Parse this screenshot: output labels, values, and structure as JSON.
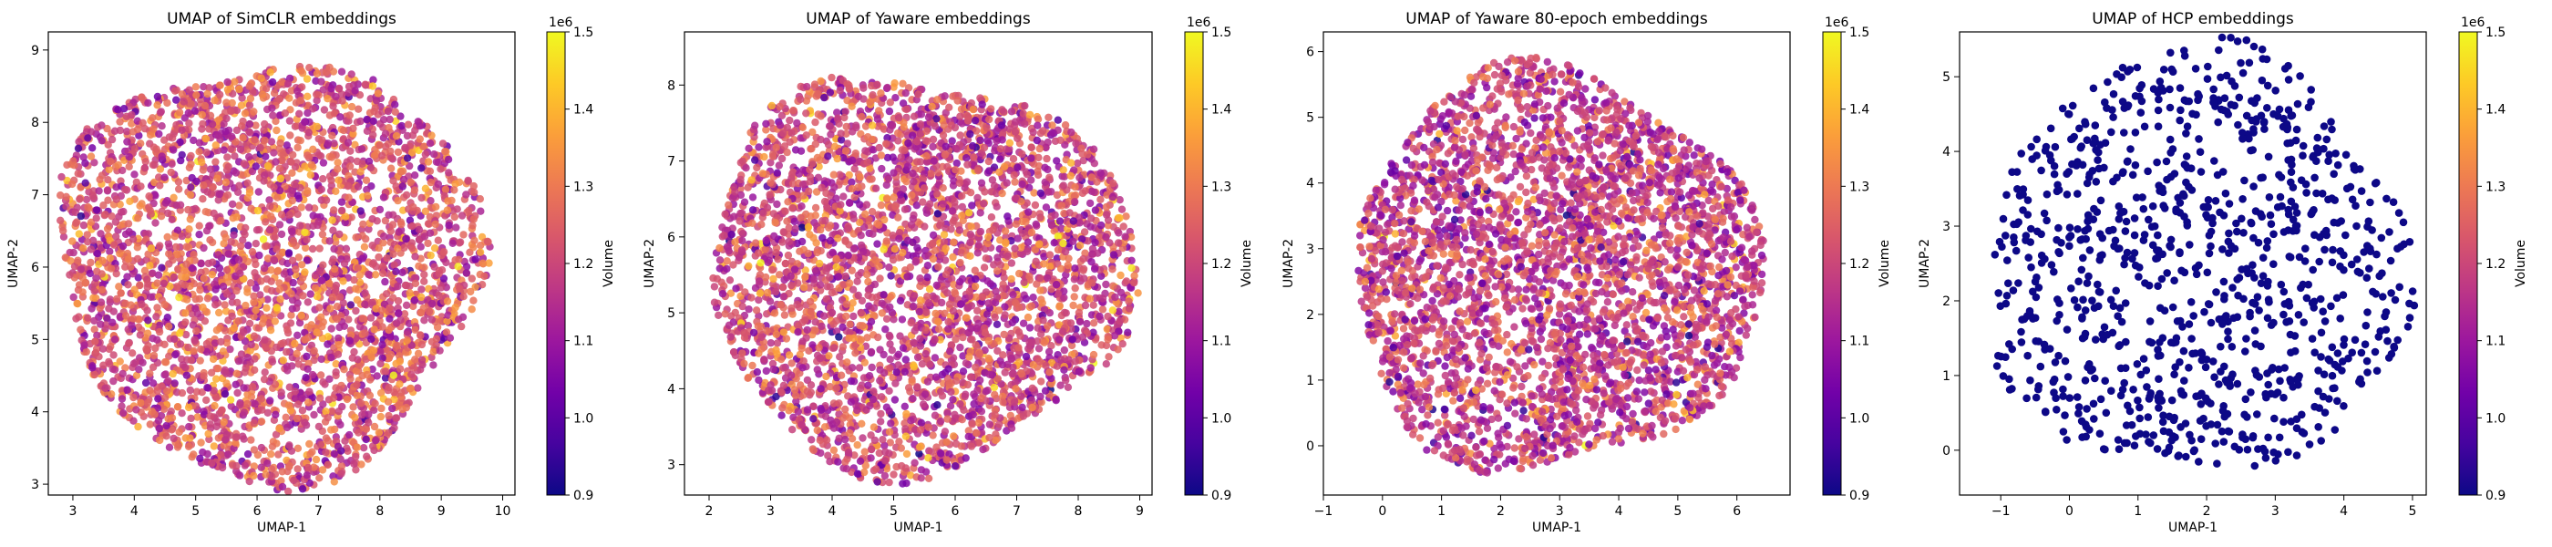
{
  "chart_data": [
    {
      "type": "scatter",
      "title": "UMAP of SimCLR embeddings",
      "xlabel": "UMAP-1",
      "ylabel": "UMAP-2",
      "xlim": [
        2.6,
        10.2
      ],
      "ylim": [
        2.85,
        9.25
      ],
      "xticks": [
        "3",
        "4",
        "5",
        "6",
        "7",
        "8",
        "9",
        "10"
      ],
      "yticks": [
        "3",
        "4",
        "5",
        "6",
        "7",
        "8",
        "9"
      ],
      "colorbar": {
        "label": "Volume",
        "offset_text": "1e6",
        "range": [
          0.9,
          1.5
        ],
        "ticks": [
          "0.9",
          "1.0",
          "1.1",
          "1.2",
          "1.3",
          "1.4",
          "1.5"
        ]
      },
      "cloud": {
        "center": [
          6.2,
          6.0
        ],
        "radius": [
          3.45,
          2.9
        ],
        "count": 3500,
        "volume_range": [
          0.9,
          1.5
        ],
        "volume_mean": 1.22
      }
    },
    {
      "type": "scatter",
      "title": "UMAP of Yaware embeddings",
      "xlabel": "UMAP-1",
      "ylabel": "UMAP-2",
      "xlim": [
        1.6,
        9.2
      ],
      "ylim": [
        2.6,
        8.7
      ],
      "xticks": [
        "2",
        "3",
        "4",
        "5",
        "6",
        "7",
        "8",
        "9"
      ],
      "yticks": [
        "3",
        "4",
        "5",
        "6",
        "7",
        "8"
      ],
      "colorbar": {
        "label": "Volume",
        "offset_text": "1e6",
        "range": [
          0.9,
          1.5
        ],
        "ticks": [
          "0.9",
          "1.0",
          "1.1",
          "1.2",
          "1.3",
          "1.4",
          "1.5"
        ]
      },
      "cloud": {
        "center": [
          5.4,
          5.55
        ],
        "radius": [
          3.45,
          2.6
        ],
        "count": 3500,
        "volume_range": [
          0.9,
          1.5
        ],
        "volume_mean": 1.2
      }
    },
    {
      "type": "scatter",
      "title": "UMAP of Yaware 80-epoch embeddings",
      "xlabel": "UMAP-1",
      "ylabel": "UMAP-2",
      "xlim": [
        -1.0,
        6.9
      ],
      "ylim": [
        -0.75,
        6.3
      ],
      "xticks": [
        "−1",
        "0",
        "1",
        "2",
        "3",
        "4",
        "5",
        "6"
      ],
      "yticks": [
        "0",
        "1",
        "2",
        "3",
        "4",
        "5",
        "6"
      ],
      "colorbar": {
        "label": "Volume",
        "offset_text": "1e6",
        "range": [
          0.9,
          1.5
        ],
        "ticks": [
          "0.9",
          "1.0",
          "1.1",
          "1.2",
          "1.3",
          "1.4",
          "1.5"
        ]
      },
      "cloud": {
        "center": [
          2.9,
          2.65
        ],
        "radius": [
          3.45,
          3.05
        ],
        "count": 3500,
        "volume_range": [
          0.9,
          1.5
        ],
        "volume_mean": 1.18
      }
    },
    {
      "type": "scatter",
      "title": "UMAP of HCP embeddings",
      "xlabel": "UMAP-1",
      "ylabel": "UMAP-2",
      "xlim": [
        -1.6,
        5.2
      ],
      "ylim": [
        -0.6,
        5.6
      ],
      "xticks": [
        "−1",
        "0",
        "1",
        "2",
        "3",
        "4",
        "5"
      ],
      "yticks": [
        "0",
        "1",
        "2",
        "3",
        "4",
        "5"
      ],
      "colorbar": {
        "label": "Volume",
        "offset_text": "1e6",
        "range": [
          0.9,
          1.5
        ],
        "ticks": [
          "0.9",
          "1.0",
          "1.1",
          "1.2",
          "1.3",
          "1.4",
          "1.5"
        ]
      },
      "cloud": {
        "center": [
          1.85,
          2.5
        ],
        "radius": [
          3.1,
          2.85
        ],
        "count": 1000,
        "volume_range": [
          0.9,
          0.9
        ],
        "volume_mean": 0.9
      }
    }
  ],
  "colormap": {
    "name": "plasma",
    "stops": [
      "#0d0887",
      "#46039f",
      "#7201a8",
      "#9c179e",
      "#bd3786",
      "#d8576b",
      "#ed7953",
      "#fb9f3a",
      "#fdca26",
      "#f0f921"
    ]
  }
}
